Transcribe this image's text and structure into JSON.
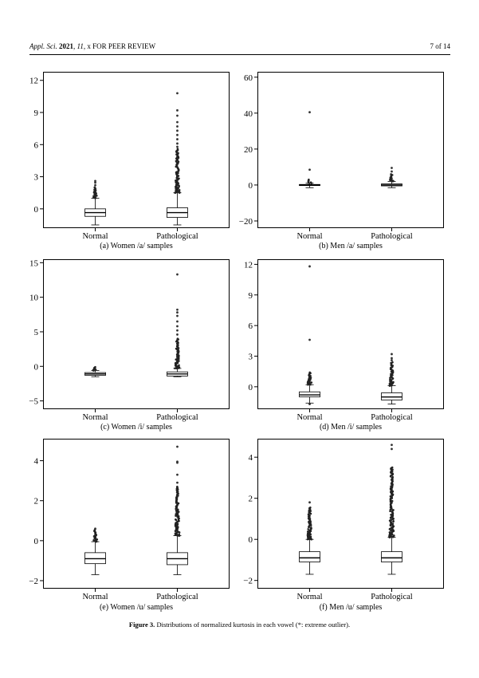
{
  "header": {
    "journal": "Appl. Sci.",
    "year": "2021",
    "volume": "11",
    "rest": ", x FOR PEER REVIEW",
    "page": "7 of 14"
  },
  "figure": {
    "label": "Figure 3.",
    "caption": " Distributions of normalized kurtosis in each vowel (*: extreme outlier)."
  },
  "chart_data": [
    {
      "type": "box",
      "caption": "(a) Women /a/ samples",
      "categories": [
        "Normal",
        "Pathological"
      ],
      "ylim": [
        -1.8,
        12.8
      ],
      "yticks": [
        0,
        3,
        6,
        9,
        12
      ],
      "ytick_labels": [
        "0",
        "3",
        "6",
        "9",
        "12"
      ],
      "boxes": [
        {
          "whisker_low": -1.5,
          "q1": -0.7,
          "median": -0.35,
          "q3": 0.0,
          "whisker_high": 1.0,
          "outlier_dense_range": [
            1.0,
            2.0
          ],
          "outliers": [
            2.2,
            2.45,
            2.6
          ]
        },
        {
          "whisker_low": -1.5,
          "q1": -0.8,
          "median": -0.35,
          "q3": 0.1,
          "whisker_high": 1.5,
          "outlier_dense_range": [
            1.5,
            5.6
          ],
          "outliers": [
            5.8,
            6.1,
            6.5,
            6.9,
            7.3,
            7.7,
            8.1,
            8.7,
            9.2,
            10.8
          ]
        }
      ]
    },
    {
      "type": "box",
      "caption": "(b) Men /a/ samples",
      "categories": [
        "Normal",
        "Pathological"
      ],
      "ylim": [
        -24,
        63
      ],
      "yticks": [
        -20,
        0,
        20,
        40,
        60
      ],
      "ytick_labels": [
        "−20",
        "0",
        "20",
        "40",
        "60"
      ],
      "boxes": [
        {
          "whisker_low": -1.5,
          "q1": -0.3,
          "median": 0.0,
          "q3": 0.3,
          "whisker_high": 1.0,
          "outlier_dense_range": [
            1.0,
            3.0
          ],
          "outliers": [
            8.5,
            40.5
          ]
        },
        {
          "whisker_low": -1.5,
          "q1": -0.5,
          "median": 0.0,
          "q3": 0.6,
          "whisker_high": 2.0,
          "outlier_dense_range": [
            2.0,
            6.0
          ],
          "outliers": [
            7.5,
            9.5
          ]
        }
      ]
    },
    {
      "type": "box",
      "caption": "(c) Women /i/ samples",
      "categories": [
        "Normal",
        "Pathological"
      ],
      "ylim": [
        -6.2,
        15.5
      ],
      "yticks": [
        -5,
        0,
        5,
        10,
        15
      ],
      "ytick_labels": [
        "−5",
        "0",
        "5",
        "10",
        "15"
      ],
      "boxes": [
        {
          "whisker_low": -1.5,
          "q1": -1.3,
          "median": -1.1,
          "q3": -0.9,
          "whisker_high": -0.6,
          "outlier_dense_range": [
            -0.6,
            -0.1
          ],
          "outliers": []
        },
        {
          "whisker_low": -1.5,
          "q1": -1.4,
          "median": -1.1,
          "q3": -0.8,
          "whisker_high": -0.3,
          "outlier_dense_range": [
            -0.3,
            4.0
          ],
          "outliers": [
            4.6,
            5.2,
            5.8,
            6.5,
            7.3,
            7.8,
            8.2,
            13.3
          ]
        }
      ]
    },
    {
      "type": "box",
      "caption": "(d) Men /i/ samples",
      "categories": [
        "Normal",
        "Pathological"
      ],
      "ylim": [
        -2.2,
        12.5
      ],
      "yticks": [
        0,
        3,
        6,
        9,
        12
      ],
      "ytick_labels": [
        "0",
        "3",
        "6",
        "9",
        "12"
      ],
      "boxes": [
        {
          "whisker_low": -1.6,
          "q1": -1.0,
          "median": -0.8,
          "q3": -0.5,
          "whisker_high": 0.2,
          "outlier_dense_range": [
            0.2,
            1.4
          ],
          "outliers": [
            4.6,
            11.8,
            -1.7
          ]
        },
        {
          "whisker_low": -1.7,
          "q1": -1.3,
          "median": -1.0,
          "q3": -0.6,
          "whisker_high": 0.1,
          "outlier_dense_range": [
            0.1,
            2.4
          ],
          "outliers": [
            2.6,
            2.8,
            3.2
          ]
        }
      ]
    },
    {
      "type": "box",
      "caption": "(e) Women /u/ samples",
      "categories": [
        "Normal",
        "Pathological"
      ],
      "ylim": [
        -2.4,
        5.1
      ],
      "yticks": [
        -2,
        0,
        2,
        4
      ],
      "ytick_labels": [
        "−2",
        "0",
        "2",
        "4"
      ],
      "boxes": [
        {
          "whisker_low": -1.7,
          "q1": -1.15,
          "median": -0.9,
          "q3": -0.6,
          "whisker_high": -0.05,
          "outlier_dense_range": [
            -0.05,
            0.55
          ],
          "outliers": [
            0.6
          ]
        },
        {
          "whisker_low": -1.7,
          "q1": -1.2,
          "median": -0.9,
          "q3": -0.6,
          "whisker_high": 0.25,
          "outlier_dense_range": [
            0.25,
            2.7
          ],
          "outliers": [
            2.9,
            3.3,
            3.9,
            3.95,
            4.7
          ]
        }
      ]
    },
    {
      "type": "box",
      "caption": "(f) Men /u/ samples",
      "categories": [
        "Normal",
        "Pathological"
      ],
      "ylim": [
        -2.4,
        4.9
      ],
      "yticks": [
        -2,
        0,
        2,
        4
      ],
      "ytick_labels": [
        "−2",
        "0",
        "2",
        "4"
      ],
      "boxes": [
        {
          "whisker_low": -1.7,
          "q1": -1.1,
          "median": -0.9,
          "q3": -0.6,
          "whisker_high": 0.0,
          "outlier_dense_range": [
            0.0,
            1.55
          ],
          "outliers": [
            1.8
          ]
        },
        {
          "whisker_low": -1.7,
          "q1": -1.1,
          "median": -0.9,
          "q3": -0.6,
          "whisker_high": 0.1,
          "outlier_dense_range": [
            0.1,
            3.5
          ],
          "outliers": [
            4.4,
            4.6
          ]
        }
      ]
    }
  ]
}
